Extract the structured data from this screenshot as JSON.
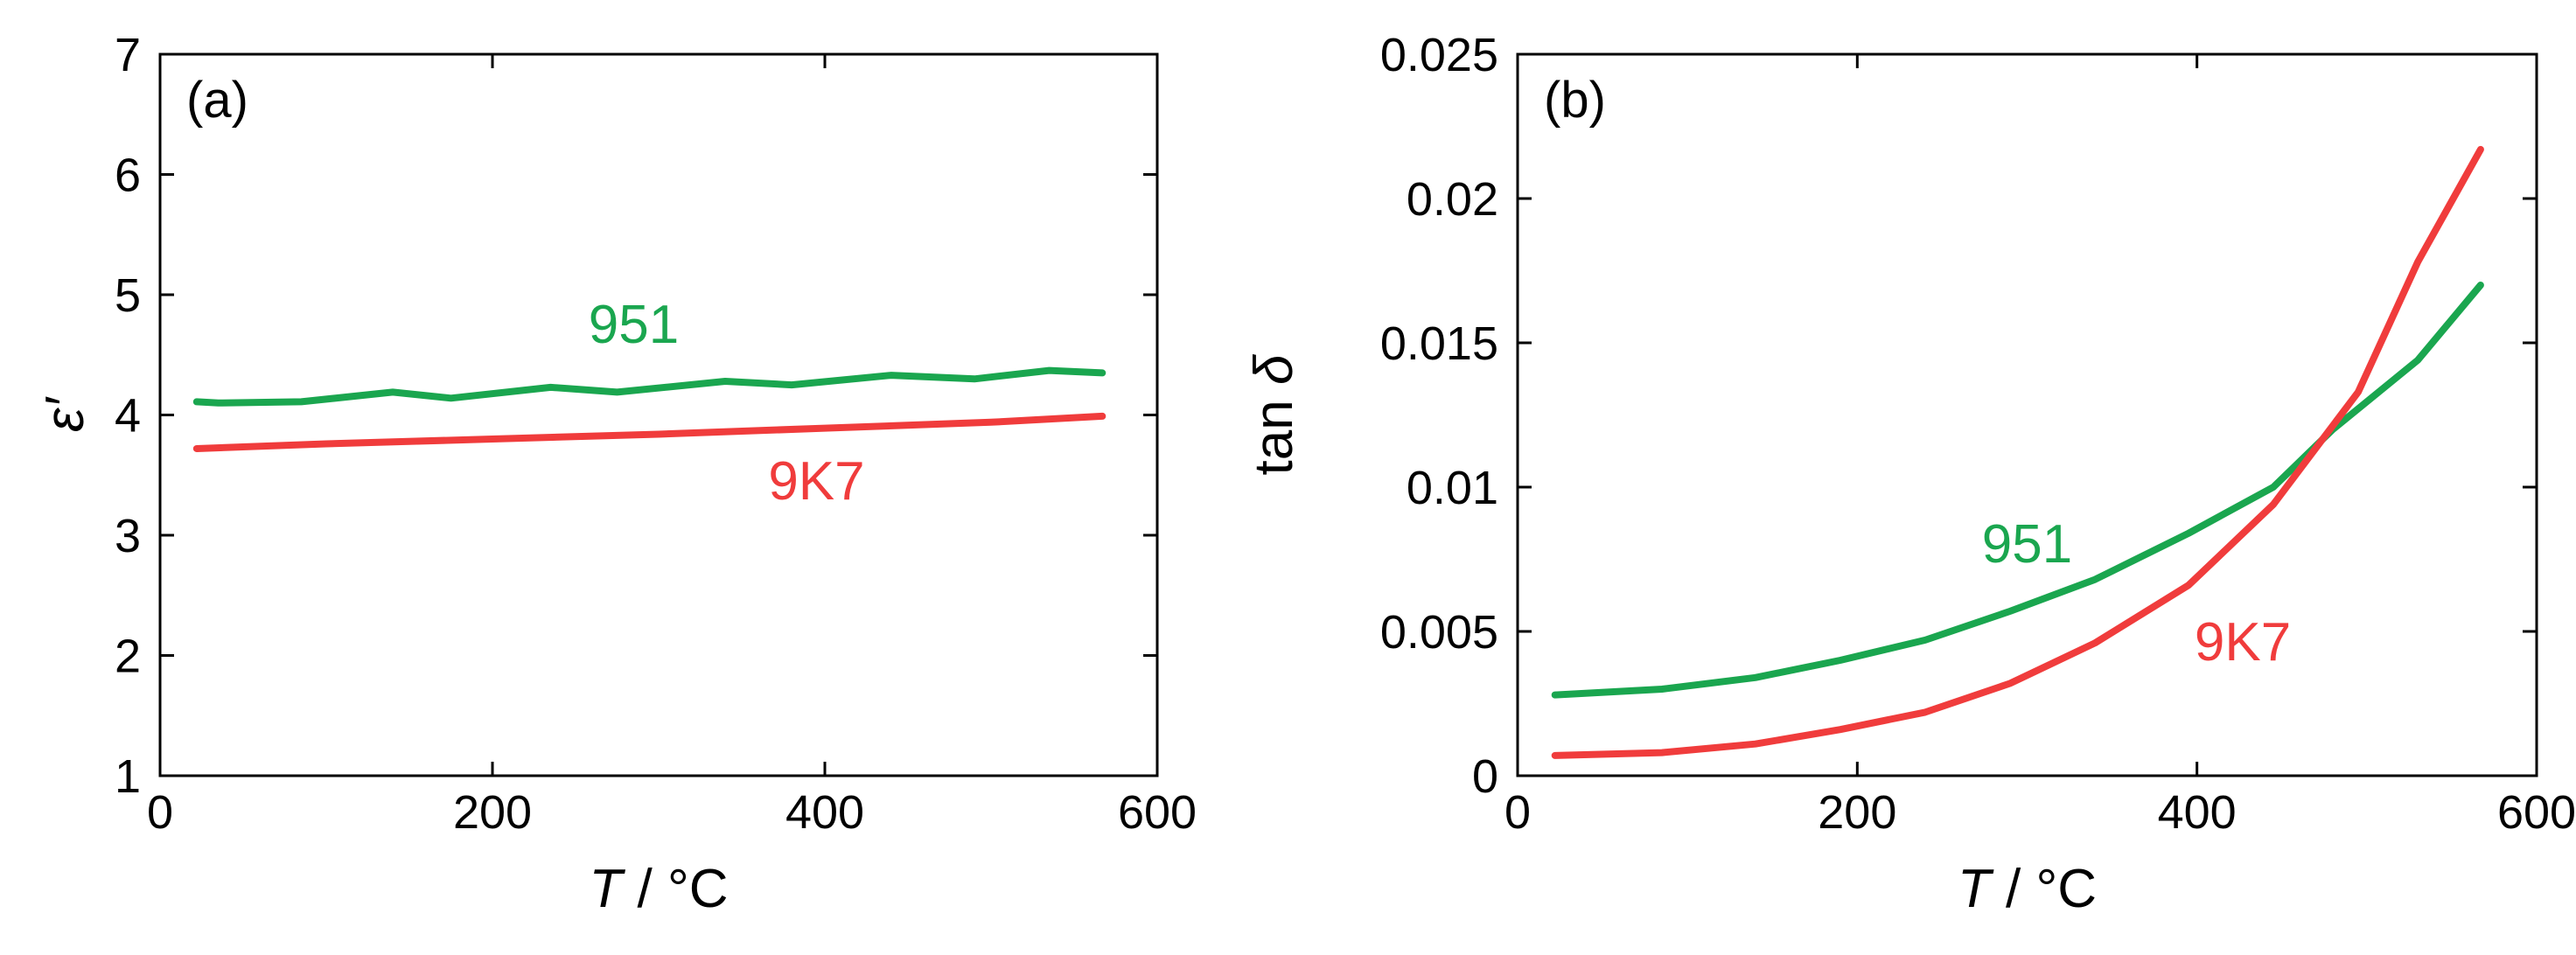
{
  "colors": {
    "green": "#1aa64f",
    "red": "#f03c3c",
    "axis": "#000000"
  },
  "chart_data": [
    {
      "type": "line",
      "panel_label": "(a)",
      "xlabel_var": "T",
      "xlabel_unit": " / °C",
      "ylabel": "ε′",
      "xlim": [
        0,
        600
      ],
      "ylim": [
        1,
        7
      ],
      "xticks": [
        0,
        200,
        400,
        600
      ],
      "xtick_labels": [
        "0",
        "200",
        "400",
        "600"
      ],
      "yticks": [
        1,
        2,
        3,
        4,
        5,
        6,
        7
      ],
      "ytick_labels": [
        "1",
        "2",
        "3",
        "4",
        "5",
        "6",
        "7"
      ],
      "series": [
        {
          "name": "951",
          "color": "#1aa64f",
          "x": [
            22,
            35,
            85,
            140,
            175,
            235,
            275,
            340,
            380,
            440,
            490,
            535,
            567
          ],
          "y": [
            4.11,
            4.1,
            4.11,
            4.19,
            4.14,
            4.23,
            4.19,
            4.28,
            4.25,
            4.33,
            4.3,
            4.37,
            4.35
          ],
          "label_at": [
            285,
            4.6
          ]
        },
        {
          "name": "9K7",
          "color": "#f03c3c",
          "x": [
            22,
            100,
            200,
            300,
            400,
            500,
            567
          ],
          "y": [
            3.72,
            3.76,
            3.8,
            3.84,
            3.89,
            3.94,
            3.99
          ],
          "label_at": [
            395,
            3.3
          ]
        }
      ]
    },
    {
      "type": "line",
      "panel_label": "(b)",
      "xlabel_var": "T",
      "xlabel_unit": " / °C",
      "ylabel_prefix": "tan ",
      "ylabel_var": "δ",
      "xlim": [
        0,
        600
      ],
      "ylim": [
        0,
        0.025
      ],
      "xticks": [
        0,
        200,
        400,
        600
      ],
      "xtick_labels": [
        "0",
        "200",
        "400",
        "600"
      ],
      "yticks": [
        0,
        0.005,
        0.01,
        0.015,
        0.02,
        0.025
      ],
      "ytick_labels": [
        "0",
        "0.005",
        "0.01",
        "0.015",
        "0.02",
        "0.025"
      ],
      "series": [
        {
          "name": "951",
          "color": "#1aa64f",
          "x": [
            22,
            85,
            140,
            190,
            240,
            290,
            340,
            395,
            445,
            480,
            530,
            567
          ],
          "y": [
            0.0028,
            0.003,
            0.0034,
            0.004,
            0.0047,
            0.0057,
            0.0068,
            0.0084,
            0.01,
            0.012,
            0.0144,
            0.017
          ],
          "label_at": [
            300,
            0.0074
          ]
        },
        {
          "name": "9K7",
          "color": "#f03c3c",
          "x": [
            22,
            85,
            140,
            190,
            240,
            290,
            340,
            395,
            445,
            495,
            530,
            567
          ],
          "y": [
            0.0007,
            0.0008,
            0.0011,
            0.0016,
            0.0022,
            0.0032,
            0.0046,
            0.0066,
            0.0094,
            0.0133,
            0.0178,
            0.0217
          ],
          "label_at": [
            427,
            0.004
          ]
        }
      ]
    }
  ]
}
